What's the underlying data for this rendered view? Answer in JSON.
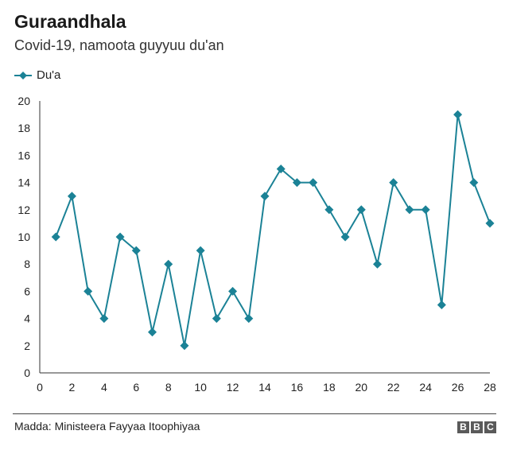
{
  "chart_data": {
    "type": "line",
    "title": "Guraandhala",
    "subtitle": "Covid-19, namoota guyyuu du'an",
    "xlabel": "",
    "ylabel": "",
    "xlim": [
      0,
      28
    ],
    "ylim": [
      0,
      20
    ],
    "x_ticks": [
      0,
      2,
      4,
      6,
      8,
      10,
      12,
      14,
      16,
      18,
      20,
      22,
      24,
      26,
      28
    ],
    "y_ticks": [
      0,
      2,
      4,
      6,
      8,
      10,
      12,
      14,
      16,
      18,
      20
    ],
    "grid": false,
    "legend_position": "top-left",
    "series": [
      {
        "name": "Du'a",
        "color": "#1b8296",
        "marker": "diamond",
        "x": [
          1,
          2,
          3,
          4,
          5,
          6,
          7,
          8,
          9,
          10,
          11,
          12,
          13,
          14,
          15,
          16,
          17,
          18,
          19,
          20,
          21,
          22,
          23,
          24,
          25,
          26,
          27,
          28
        ],
        "y": [
          10,
          13,
          6,
          4,
          10,
          9,
          3,
          8,
          2,
          9,
          4,
          6,
          4,
          13,
          15,
          14,
          14,
          12,
          10,
          12,
          8,
          14,
          12,
          12,
          5,
          19,
          14,
          11
        ]
      }
    ]
  },
  "footer": {
    "source": "Madda: Ministeera Fayyaa Itoophiyaa",
    "logo_letters": [
      "B",
      "B",
      "C"
    ]
  }
}
